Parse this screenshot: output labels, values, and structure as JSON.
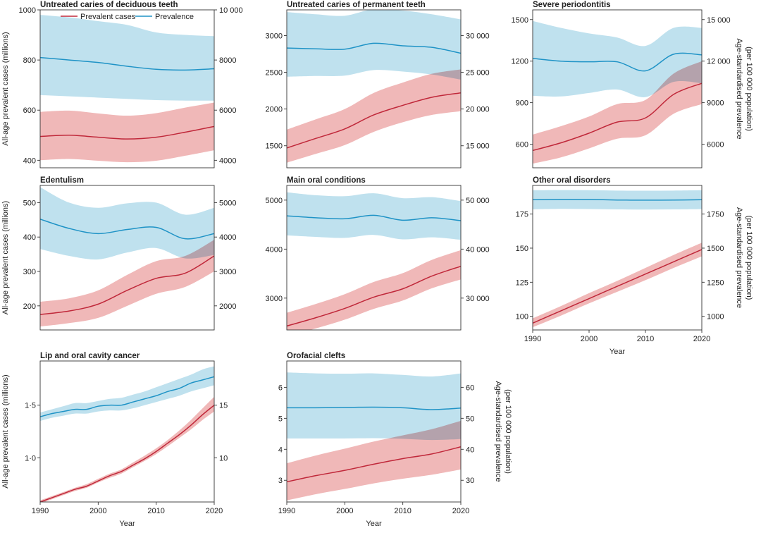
{
  "colors": {
    "cases_line": "#c0283a",
    "cases_band": "#f0b8b8",
    "prev_line": "#1f93c6",
    "prev_band": "#bfe1ee"
  },
  "legend": {
    "cases_label": "Prevalent cases",
    "prev_label": "Prevalence"
  },
  "labels": {
    "left_axis": "All-age prevalent cases (millions)",
    "right_axis_line1": "Age-standardised prevalence",
    "right_axis_line2": "(per 100 000 population)",
    "x_axis": "Year"
  },
  "chart_data": [
    {
      "type": "line",
      "title": "Untreated caries of deciduous teeth",
      "x": [
        1990,
        1995,
        2000,
        2005,
        2010,
        2015,
        2020
      ],
      "xlim": [
        1990,
        2020
      ],
      "xticks": [],
      "yleft_lim": [
        370,
        1000
      ],
      "yleft_ticks": [
        400,
        600,
        800,
        1000
      ],
      "yleft_tick_labels": [
        "400",
        "600",
        "800",
        "1000"
      ],
      "yright_lim": [
        3700,
        10000
      ],
      "yright_ticks": [
        4000,
        6000,
        8000,
        10000
      ],
      "yright_tick_labels": [
        "4000",
        "6000",
        "8000",
        "10 000"
      ],
      "show_left_label": true,
      "show_right_label": false,
      "show_xlabel": false,
      "series": [
        {
          "name": "Prevalent cases",
          "axis": "left",
          "values": [
            495,
            500,
            492,
            485,
            492,
            512,
            535
          ],
          "lower": [
            400,
            405,
            398,
            392,
            398,
            418,
            440
          ],
          "upper": [
            593,
            598,
            587,
            578,
            588,
            610,
            630
          ]
        },
        {
          "name": "Prevalence",
          "axis": "right",
          "values": [
            8100,
            8000,
            7900,
            7750,
            7630,
            7600,
            7650
          ],
          "upper": [
            9800,
            9700,
            9550,
            9400,
            9100,
            9000,
            8950
          ],
          "lower": [
            6600,
            6550,
            6500,
            6450,
            6400,
            6380,
            6380
          ]
        }
      ]
    },
    {
      "type": "line",
      "title": "Untreated caries of permanent teeth",
      "x": [
        1990,
        1995,
        2000,
        2005,
        2010,
        2015,
        2020
      ],
      "xlim": [
        1990,
        2020
      ],
      "xticks": [],
      "yleft_lim": [
        1200,
        3350
      ],
      "yleft_ticks": [
        1500,
        2000,
        2500,
        3000
      ],
      "yleft_tick_labels": [
        "1500",
        "2000",
        "2500",
        "3000"
      ],
      "yright_lim": [
        12000,
        33500
      ],
      "yright_ticks": [
        15000,
        20000,
        25000,
        30000
      ],
      "yright_tick_labels": [
        "15 000",
        "20 000",
        "25 000",
        "30 000"
      ],
      "show_left_label": false,
      "show_right_label": false,
      "show_xlabel": false,
      "series": [
        {
          "name": "Prevalent cases",
          "axis": "left",
          "values": [
            1470,
            1600,
            1730,
            1920,
            2050,
            2160,
            2220
          ],
          "lower": [
            1270,
            1390,
            1510,
            1690,
            1820,
            1920,
            1970
          ],
          "upper": [
            1720,
            1860,
            2000,
            2220,
            2360,
            2480,
            2540
          ]
        },
        {
          "name": "Prevalence",
          "axis": "right",
          "values": [
            28300,
            28200,
            28150,
            28950,
            28600,
            28400,
            27600
          ],
          "upper": [
            33200,
            32900,
            32700,
            33600,
            33400,
            32900,
            32200
          ],
          "lower": [
            24400,
            24500,
            24550,
            25300,
            25100,
            24700,
            24000
          ]
        }
      ]
    },
    {
      "type": "line",
      "title": "Severe periodontitis",
      "x": [
        1990,
        1995,
        2000,
        2005,
        2010,
        2015,
        2020
      ],
      "xlim": [
        1990,
        2020
      ],
      "xticks": [],
      "yleft_lim": [
        430,
        1570
      ],
      "yleft_ticks": [
        600,
        900,
        1200,
        1500
      ],
      "yleft_tick_labels": [
        "600",
        "900",
        "1200",
        "1500"
      ],
      "yright_lim": [
        4300,
        15700
      ],
      "yright_ticks": [
        6000,
        9000,
        12000,
        15000
      ],
      "yright_tick_labels": [
        "6000",
        "9000",
        "12 000",
        "15 000"
      ],
      "show_left_label": false,
      "show_right_label": true,
      "show_xlabel": false,
      "series": [
        {
          "name": "Prevalent cases",
          "axis": "left",
          "values": [
            555,
            610,
            680,
            760,
            790,
            960,
            1040
          ],
          "lower": [
            460,
            505,
            570,
            640,
            665,
            820,
            890
          ],
          "upper": [
            670,
            730,
            800,
            890,
            920,
            1110,
            1200
          ]
        },
        {
          "name": "Prevalence",
          "axis": "right",
          "values": [
            12200,
            12000,
            11950,
            11950,
            11300,
            12500,
            12450
          ],
          "upper": [
            14900,
            14400,
            14000,
            13700,
            13100,
            14400,
            14400
          ],
          "lower": [
            9500,
            9450,
            9700,
            9950,
            9400,
            10500,
            10400
          ]
        }
      ]
    },
    {
      "type": "line",
      "title": "Edentulism",
      "x": [
        1990,
        1995,
        2000,
        2005,
        2010,
        2015,
        2020
      ],
      "xlim": [
        1990,
        2020
      ],
      "xticks": [],
      "yleft_lim": [
        130,
        550
      ],
      "yleft_ticks": [
        200,
        300,
        400,
        500
      ],
      "yleft_tick_labels": [
        "200",
        "300",
        "400",
        "500"
      ],
      "yright_lim": [
        1300,
        5500
      ],
      "yright_ticks": [
        2000,
        3000,
        4000,
        5000
      ],
      "yright_tick_labels": [
        "2000",
        "3000",
        "4000",
        "5000"
      ],
      "show_left_label": true,
      "show_right_label": false,
      "show_xlabel": false,
      "series": [
        {
          "name": "Prevalent cases",
          "axis": "left",
          "values": [
            175,
            185,
            205,
            245,
            280,
            295,
            345
          ],
          "lower": [
            140,
            150,
            165,
            200,
            235,
            255,
            300
          ],
          "upper": [
            212,
            222,
            245,
            290,
            330,
            345,
            392
          ]
        },
        {
          "name": "Prevalence",
          "axis": "right",
          "values": [
            4520,
            4250,
            4100,
            4220,
            4280,
            3950,
            4100
          ],
          "upper": [
            5450,
            5000,
            4850,
            4980,
            5000,
            4650,
            4850
          ],
          "lower": [
            3650,
            3450,
            3350,
            3550,
            3680,
            3380,
            3480
          ]
        }
      ]
    },
    {
      "type": "line",
      "title": "Main oral conditions",
      "x": [
        1990,
        1995,
        2000,
        2005,
        2010,
        2015,
        2020
      ],
      "xlim": [
        1990,
        2020
      ],
      "xticks": [],
      "yleft_lim": [
        2350,
        5300
      ],
      "yleft_ticks": [
        3000,
        4000,
        5000
      ],
      "yleft_tick_labels": [
        "3000",
        "4000",
        "5000"
      ],
      "yright_lim": [
        23500,
        53000
      ],
      "yright_ticks": [
        30000,
        40000,
        50000
      ],
      "yright_tick_labels": [
        "30 000",
        "40 000",
        "50 000"
      ],
      "show_left_label": false,
      "show_right_label": false,
      "show_xlabel": false,
      "series": [
        {
          "name": "Prevalent cases",
          "axis": "left",
          "values": [
            2430,
            2600,
            2790,
            3020,
            3190,
            3450,
            3650
          ],
          "lower": [
            2220,
            2380,
            2560,
            2780,
            2950,
            3200,
            3380
          ],
          "upper": [
            2700,
            2880,
            3080,
            3330,
            3510,
            3780,
            3980
          ]
        },
        {
          "name": "Prevalence",
          "axis": "right",
          "values": [
            46800,
            46400,
            46200,
            46900,
            45900,
            46400,
            45800
          ],
          "upper": [
            51600,
            51000,
            50800,
            51400,
            50400,
            50600,
            49800
          ],
          "lower": [
            42800,
            42500,
            42300,
            42900,
            42000,
            42400,
            41900
          ]
        }
      ]
    },
    {
      "type": "line",
      "title": "Other oral disorders",
      "x": [
        1990,
        1995,
        2000,
        2005,
        2010,
        2015,
        2020
      ],
      "xlim": [
        1990,
        2020
      ],
      "xticks": [
        1990,
        2000,
        2010,
        2020
      ],
      "yleft_lim": [
        90,
        196
      ],
      "yleft_ticks": [
        100,
        125,
        150,
        175
      ],
      "yleft_tick_labels": [
        "100",
        "125",
        "150",
        "175"
      ],
      "yright_lim": [
        900,
        1960
      ],
      "yright_ticks": [
        1000,
        1250,
        1500,
        1750
      ],
      "yright_tick_labels": [
        "1000",
        "1250",
        "1500",
        "1750"
      ],
      "show_left_label": false,
      "show_right_label": true,
      "show_xlabel": true,
      "series": [
        {
          "name": "Prevalent cases",
          "axis": "left",
          "values": [
            95,
            104,
            113,
            122,
            131,
            140,
            149
          ],
          "lower": [
            92,
            100.5,
            109.5,
            118,
            126.5,
            135.5,
            144
          ],
          "upper": [
            98.5,
            107.5,
            117,
            126,
            135.5,
            145,
            154
          ]
        },
        {
          "name": "Prevalence",
          "axis": "right",
          "values": [
            1855,
            1858,
            1857,
            1853,
            1852,
            1853,
            1855
          ],
          "upper": [
            1925,
            1926,
            1925,
            1922,
            1921,
            1922,
            1925
          ],
          "lower": [
            1785,
            1788,
            1787,
            1784,
            1783,
            1784,
            1786
          ]
        }
      ]
    },
    {
      "type": "line",
      "title": "Lip and oral cavity cancer",
      "x": [
        1990,
        1992,
        1994,
        1996,
        1998,
        2000,
        2002,
        2004,
        2006,
        2008,
        2010,
        2012,
        2014,
        2016,
        2018,
        2020
      ],
      "xlim": [
        1990,
        2020
      ],
      "xticks": [
        1990,
        2000,
        2010,
        2020
      ],
      "yleft_lim": [
        0.58,
        1.92
      ],
      "yleft_ticks": [
        1.0,
        1.5
      ],
      "yleft_tick_labels": [
        "1·0",
        "1·5"
      ],
      "yright_lim": [
        5.8,
        19.2
      ],
      "yright_ticks": [
        10,
        15
      ],
      "yright_tick_labels": [
        "10",
        "15"
      ],
      "show_left_label": true,
      "show_right_label": false,
      "show_xlabel": true,
      "series": [
        {
          "name": "Prevalent cases",
          "axis": "left",
          "values": [
            0.58,
            0.62,
            0.66,
            0.7,
            0.73,
            0.78,
            0.83,
            0.87,
            0.93,
            0.99,
            1.06,
            1.14,
            1.22,
            1.31,
            1.41,
            1.5
          ],
          "lower": [
            0.565,
            0.605,
            0.645,
            0.685,
            0.715,
            0.765,
            0.81,
            0.85,
            0.91,
            0.97,
            1.035,
            1.11,
            1.19,
            1.27,
            1.36,
            1.44
          ],
          "upper": [
            0.595,
            0.635,
            0.675,
            0.715,
            0.75,
            0.8,
            0.85,
            0.89,
            0.955,
            1.02,
            1.09,
            1.17,
            1.26,
            1.36,
            1.47,
            1.58
          ]
        },
        {
          "name": "Prevalence",
          "axis": "right",
          "values": [
            13.9,
            14.2,
            14.4,
            14.6,
            14.6,
            14.9,
            15.0,
            15.0,
            15.3,
            15.6,
            15.9,
            16.3,
            16.6,
            17.1,
            17.4,
            17.7
          ],
          "upper": [
            14.3,
            14.6,
            14.9,
            15.2,
            15.2,
            15.4,
            15.6,
            15.7,
            16.0,
            16.3,
            16.7,
            17.1,
            17.5,
            17.9,
            18.4,
            18.7
          ],
          "lower": [
            13.5,
            13.8,
            14.0,
            14.2,
            14.2,
            14.4,
            14.5,
            14.5,
            14.7,
            15.0,
            15.3,
            15.6,
            15.9,
            16.3,
            16.6,
            16.9
          ]
        }
      ]
    },
    {
      "type": "line",
      "title": "Orofacial clefts",
      "x": [
        1990,
        1995,
        2000,
        2005,
        2010,
        2015,
        2020
      ],
      "xlim": [
        1990,
        2020
      ],
      "xticks": [
        1990,
        2000,
        2010,
        2020
      ],
      "yleft_lim": [
        2.3,
        6.85
      ],
      "yleft_ticks": [
        3,
        4,
        5,
        6
      ],
      "yleft_tick_labels": [
        "3",
        "4",
        "5",
        "6"
      ],
      "yright_lim": [
        23,
        68.5
      ],
      "yright_ticks": [
        30,
        40,
        50,
        60
      ],
      "yright_tick_labels": [
        "30",
        "40",
        "50",
        "60"
      ],
      "show_left_label": false,
      "show_right_label": true,
      "show_xlabel": true,
      "series": [
        {
          "name": "Prevalent cases",
          "axis": "left",
          "values": [
            2.95,
            3.15,
            3.32,
            3.52,
            3.7,
            3.85,
            4.08
          ],
          "lower": [
            2.35,
            2.55,
            2.72,
            2.9,
            3.05,
            3.18,
            3.35
          ],
          "upper": [
            3.55,
            3.8,
            4.02,
            4.25,
            4.45,
            4.65,
            4.92
          ]
        },
        {
          "name": "Prevalence",
          "axis": "right",
          "values": [
            53.4,
            53.4,
            53.5,
            53.6,
            53.4,
            52.8,
            53.3
          ],
          "upper": [
            64.8,
            64.5,
            64.4,
            64.5,
            64.0,
            63.5,
            64.5
          ],
          "lower": [
            43.5,
            43.5,
            43.5,
            43.6,
            43.4,
            43.0,
            43.3
          ]
        }
      ]
    }
  ]
}
